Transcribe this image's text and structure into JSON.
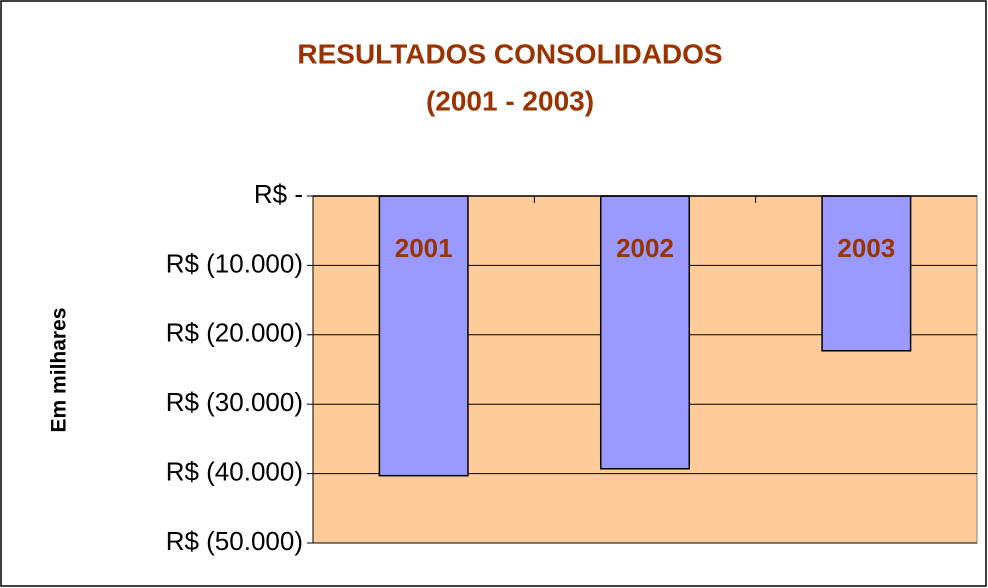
{
  "chart_data": {
    "type": "bar",
    "title": "RESULTADOS CONSOLIDADOS",
    "subtitle": "(2001 - 2003)",
    "y_label": "Em milhares",
    "categories": [
      "2001",
      "2002",
      "2003"
    ],
    "values": [
      -40300,
      -39300,
      -22300
    ],
    "color": "#9999FF",
    "plot_background": "#FFCC99",
    "ylim": [
      -50000,
      0
    ],
    "yticks": [
      {
        "value": 0,
        "label": "R$ -"
      },
      {
        "value": -10000,
        "label": "R$ (10.000)"
      },
      {
        "value": -20000,
        "label": "R$ (20.000)"
      },
      {
        "value": -30000,
        "label": "R$ (30.000)"
      },
      {
        "value": -40000,
        "label": "R$ (40.000)"
      },
      {
        "value": -50000,
        "label": "R$ (50.000)"
      }
    ],
    "grid": true
  }
}
